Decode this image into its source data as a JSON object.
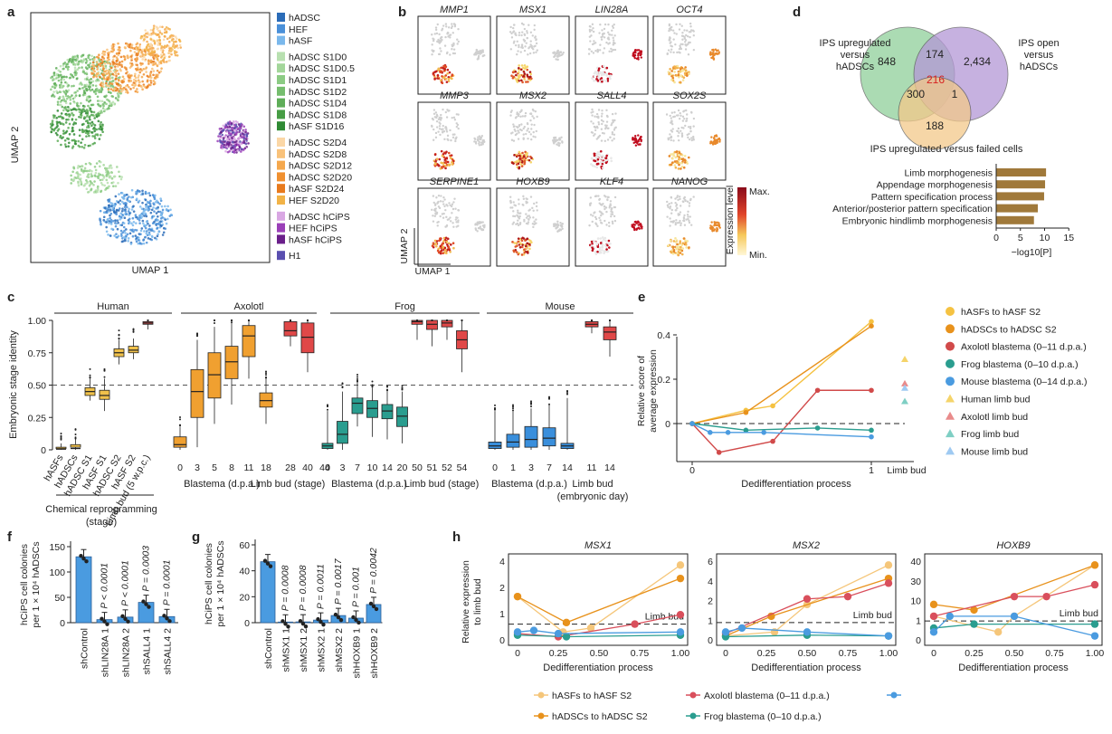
{
  "panels": {
    "a": {
      "letter": "a",
      "xlabel": "UMAP 1",
      "ylabel": "UMAP 2",
      "legend": [
        {
          "label": "hADSC",
          "color": "#2b6cb8"
        },
        {
          "label": "HEF",
          "color": "#4a90d9"
        },
        {
          "label": "hASF",
          "color": "#7ab8ec"
        },
        {
          "label": "hADSC S1D0",
          "color": "#b8e0b0"
        },
        {
          "label": "hADSC S1D0.5",
          "color": "#a3d69a"
        },
        {
          "label": "hADSC S1D1",
          "color": "#8ccb84"
        },
        {
          "label": "hADSC S1D2",
          "color": "#75bd6e"
        },
        {
          "label": "hADSC S1D4",
          "color": "#5ead58"
        },
        {
          "label": "hADSC S1D8",
          "color": "#479d45"
        },
        {
          "label": "hASF S1D16",
          "color": "#2f8a34"
        },
        {
          "label": "hADSC S2D4",
          "color": "#fbd7a6"
        },
        {
          "label": "hADSC S2D8",
          "color": "#f9c27a"
        },
        {
          "label": "hADSC S2D12",
          "color": "#f5a84d"
        },
        {
          "label": "hADSC S2D20",
          "color": "#f09030"
        },
        {
          "label": "hASF S2D24",
          "color": "#e87a1d"
        },
        {
          "label": "HEF S2D20",
          "color": "#f2b347"
        },
        {
          "label": "hADSC hCiPS",
          "color": "#d9a7e3"
        },
        {
          "label": "HEF hCiPS",
          "color": "#9a3fb8"
        },
        {
          "label": "hASF hCiPS",
          "color": "#6a1f8a"
        },
        {
          "label": "H1",
          "color": "#5a4fb0"
        }
      ]
    },
    "b": {
      "letter": "b",
      "genes": [
        "MMP1",
        "MSX1",
        "LIN28A",
        "OCT4",
        "MMP3",
        "MSX2",
        "SALL4",
        "SOX2S",
        "SERPINE1",
        "HOXB9",
        "KLF4",
        "NANOG"
      ],
      "xlabel": "UMAP 1",
      "ylabel": "UMAP 2",
      "scale_label": "Expression level",
      "max_label": "Max.",
      "min_label": "Min."
    },
    "c": {
      "letter": "c",
      "ylabel": "Embryonic stage identity",
      "yticks": [
        "1.00",
        "0.75",
        "0.50",
        "0.25",
        "0"
      ],
      "groups": [
        "Human",
        "Axolotl",
        "Frog",
        "Mouse"
      ],
      "human_ticks": [
        "hASFs",
        "hADSCs",
        "hADSC S1",
        "hASF S1",
        "hADSC S2",
        "hASF S2",
        "Limb bud (5 w.p.c.)"
      ],
      "human_caption": "Chemical reprogramming (stage)",
      "axolotl_ticks": [
        "0",
        "3",
        "5",
        "8",
        "11",
        "18",
        "28",
        "40",
        "44"
      ],
      "axolotl_cap1": "Blastema (d.p.a.)",
      "axolotl_cap2": "Limb bud (stage)",
      "frog_ticks": [
        "0",
        "3",
        "7",
        "10",
        "14",
        "20",
        "50",
        "51",
        "52",
        "54"
      ],
      "frog_cap1": "Blastema (d.p.a.)",
      "frog_cap2": "Limb bud (stage)",
      "mouse_ticks": [
        "0",
        "1",
        "3",
        "7",
        "14",
        "11",
        "14"
      ],
      "mouse_cap1": "Blastema (d.p.a.)",
      "mouse_cap2": "Limb bud (embryonic day)"
    },
    "d": {
      "letter": "d",
      "venn_labels": [
        "IPS upregulated versus hADSCs",
        "IPS open versus hADSCs",
        "IPS upregulated versus failed cells"
      ],
      "venn_numbers": [
        "848",
        "174",
        "2,434",
        "300",
        "216",
        "1",
        "188"
      ],
      "go_terms": [
        {
          "term": "Limb morphogenesis",
          "value": 10.3
        },
        {
          "term": "Appendage morphogenesis",
          "value": 10.1
        },
        {
          "term": "Pattern specification process",
          "value": 9.9
        },
        {
          "term": "Anterior/posterior pattern specification",
          "value": 8.6
        },
        {
          "term": "Embryonic hindlimb morphogenesis",
          "value": 7.8
        }
      ],
      "xticks": [
        "0",
        "5",
        "10",
        "15"
      ],
      "xlabel": "−log10[P]"
    },
    "e": {
      "letter": "e",
      "ylabel": "Relative score of average expression",
      "yticks": [
        "0.4",
        "0.2",
        "0"
      ],
      "xticks": [
        "0",
        "1",
        "Limb bud"
      ],
      "xlabel": "Dedifferentiation process",
      "legend": [
        {
          "label": "hASFs to hASF S2",
          "color": "#f5c242",
          "shape": "circle"
        },
        {
          "label": "hADSCs to hADSC S2",
          "color": "#e8921c",
          "shape": "circle"
        },
        {
          "label": "Axolotl blastema (0–11 d.p.a.)",
          "color": "#d14a4a",
          "shape": "circle"
        },
        {
          "label": "Frog blastema (0–10 d.p.a.)",
          "color": "#2a9d8f",
          "shape": "circle"
        },
        {
          "label": "Mouse blastema (0–14 d.p.a.)",
          "color": "#4a9be0",
          "shape": "circle"
        },
        {
          "label": "Human limb bud",
          "color": "#f5d46a",
          "shape": "triangle"
        },
        {
          "label": "Axolotl limb bud",
          "color": "#e98b8b",
          "shape": "triangle"
        },
        {
          "label": "Frog limb bud",
          "color": "#7fcfc4",
          "shape": "triangle"
        },
        {
          "label": "Mouse limb bud",
          "color": "#9fcaf2",
          "shape": "triangle"
        }
      ]
    },
    "f": {
      "letter": "f",
      "ylabel": "hCiPS cell colonies per 1 × 10⁴ hADSCs",
      "yticks": [
        "150",
        "100",
        "50",
        "0"
      ],
      "bars": [
        {
          "name": "shControl",
          "value": 130,
          "p": ""
        },
        {
          "name": "shLIN28A 1",
          "value": 6,
          "p": "P < 0.0001"
        },
        {
          "name": "shLIN28A 2",
          "value": 11,
          "p": "P < 0.0001"
        },
        {
          "name": "shSALL4 1",
          "value": 40,
          "p": "P = 0.0003"
        },
        {
          "name": "shSALL4 2",
          "value": 12,
          "p": "P = 0.0001"
        }
      ],
      "ymax": 150
    },
    "g": {
      "letter": "g",
      "ylabel": "hCiPS cell colonies per 1 × 10⁴ hADSCs",
      "yticks": [
        "60",
        "40",
        "20",
        "0"
      ],
      "bars": [
        {
          "name": "shControl",
          "value": 47,
          "p": ""
        },
        {
          "name": "shMSX1 1",
          "value": 0.5,
          "p": "P = 0.0008"
        },
        {
          "name": "shMSX1 2",
          "value": 0.6,
          "p": "P = 0.0008"
        },
        {
          "name": "shMSX2 1",
          "value": 2,
          "p": "P = 0.0011"
        },
        {
          "name": "shMSX2 2",
          "value": 5.5,
          "p": "P = 0.0017"
        },
        {
          "name": "shHOXB9 1",
          "value": 3.5,
          "p": "P = 0.001"
        },
        {
          "name": "shHOXB9 2",
          "value": 14,
          "p": "P = 0.0042"
        }
      ],
      "ymax": 60
    },
    "h": {
      "letter": "h",
      "ylabel": "Relative expression to limb bud",
      "xlabel": "Dedifferentiation process",
      "xticks": [
        "0",
        "0.25",
        "0.50",
        "0.75",
        "1.00"
      ],
      "limb_bud_label": "Limb bud",
      "subplots": [
        {
          "gene": "MSX1",
          "yticks": [
            "4",
            "2",
            "1",
            "0"
          ]
        },
        {
          "gene": "MSX2",
          "yticks": [
            "6",
            "4",
            "2",
            "1",
            "0"
          ]
        },
        {
          "gene": "HOXB9",
          "yticks": [
            "40",
            "30",
            "10",
            "1",
            "0"
          ]
        }
      ],
      "legend": [
        {
          "label": "hASFs to hASF S2",
          "color": "#f5c67a"
        },
        {
          "label": "hADSCs to hADSC S2",
          "color": "#e8921c"
        },
        {
          "label": "Axolotl blastema (0–11 d.p.a.)",
          "color": "#d94f5c"
        },
        {
          "label": "Frog blastema (0–10 d.p.a.)",
          "color": "#2a9d8f"
        }
      ]
    }
  }
}
